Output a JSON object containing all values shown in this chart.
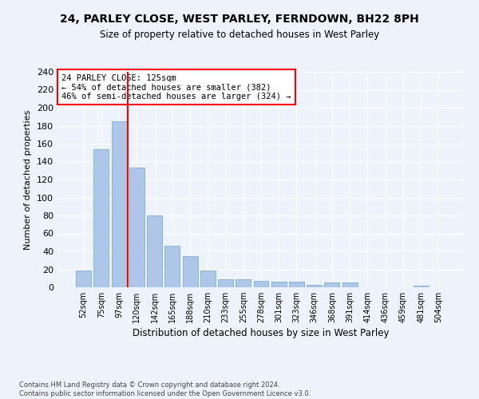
{
  "title1": "24, PARLEY CLOSE, WEST PARLEY, FERNDOWN, BH22 8PH",
  "title2": "Size of property relative to detached houses in West Parley",
  "xlabel": "Distribution of detached houses by size in West Parley",
  "ylabel": "Number of detached properties",
  "bin_labels": [
    "52sqm",
    "75sqm",
    "97sqm",
    "120sqm",
    "142sqm",
    "165sqm",
    "188sqm",
    "210sqm",
    "233sqm",
    "255sqm",
    "278sqm",
    "301sqm",
    "323sqm",
    "346sqm",
    "368sqm",
    "391sqm",
    "414sqm",
    "436sqm",
    "459sqm",
    "481sqm",
    "504sqm"
  ],
  "bar_values": [
    19,
    154,
    185,
    133,
    80,
    46,
    35,
    19,
    9,
    9,
    7,
    6,
    6,
    3,
    5,
    5,
    0,
    0,
    0,
    2,
    0
  ],
  "bar_color": "#aec6e8",
  "bar_edge_color": "#7aafd4",
  "vline_x": 2.5,
  "vline_color": "red",
  "annotation_text": "24 PARLEY CLOSE: 125sqm\n← 54% of detached houses are smaller (382)\n46% of semi-detached houses are larger (324) →",
  "annotation_box_color": "white",
  "annotation_box_edge": "red",
  "footer1": "Contains HM Land Registry data © Crown copyright and database right 2024.",
  "footer2": "Contains public sector information licensed under the Open Government Licence v3.0.",
  "ylim": [
    0,
    240
  ],
  "yticks": [
    0,
    20,
    40,
    60,
    80,
    100,
    120,
    140,
    160,
    180,
    200,
    220,
    240
  ],
  "background_color": "#eef2fa",
  "grid_color": "#ffffff"
}
